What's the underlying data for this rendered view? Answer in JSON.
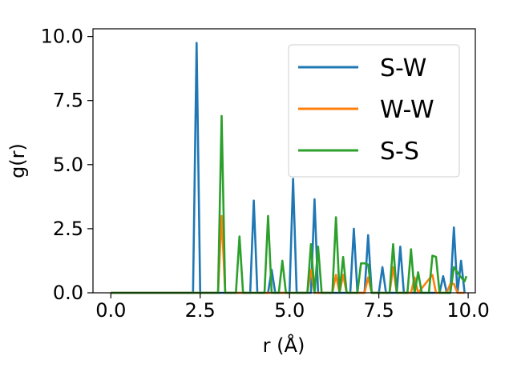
{
  "chart_data": {
    "type": "line",
    "title": "",
    "xlabel": "r (Å)",
    "ylabel": "g(r)",
    "xlim": [
      -0.5,
      10.2
    ],
    "ylim": [
      0,
      10.3
    ],
    "xticks": [
      "0.0",
      "2.5",
      "5.0",
      "7.5",
      "10.0"
    ],
    "yticks": [
      "0.0",
      "2.5",
      "5.0",
      "7.5",
      "10.0"
    ],
    "grid": false,
    "legend_position": "top-right",
    "series": [
      {
        "name": "S-W",
        "color": "#1f77b4",
        "points": [
          [
            0.0,
            0
          ],
          [
            2.3,
            0
          ],
          [
            2.4,
            9.75
          ],
          [
            2.5,
            0
          ],
          [
            3.9,
            0
          ],
          [
            4.0,
            3.6
          ],
          [
            4.1,
            0
          ],
          [
            4.4,
            0
          ],
          [
            4.5,
            0.9
          ],
          [
            4.6,
            0
          ],
          [
            5.0,
            0
          ],
          [
            5.1,
            4.45
          ],
          [
            5.2,
            0
          ],
          [
            5.6,
            0
          ],
          [
            5.7,
            3.65
          ],
          [
            5.8,
            0
          ],
          [
            6.7,
            0
          ],
          [
            6.8,
            2.5
          ],
          [
            6.9,
            0
          ],
          [
            7.1,
            0
          ],
          [
            7.2,
            2.25
          ],
          [
            7.3,
            0
          ],
          [
            7.5,
            0
          ],
          [
            7.6,
            1.0
          ],
          [
            7.7,
            0
          ],
          [
            8.0,
            0
          ],
          [
            8.1,
            1.8
          ],
          [
            8.2,
            0
          ],
          [
            9.2,
            0
          ],
          [
            9.3,
            0.65
          ],
          [
            9.4,
            0
          ],
          [
            9.5,
            0
          ],
          [
            9.6,
            2.55
          ],
          [
            9.7,
            0
          ],
          [
            9.8,
            1.25
          ],
          [
            9.9,
            0
          ]
        ]
      },
      {
        "name": "W-W",
        "color": "#ff7f0e",
        "points": [
          [
            0.0,
            0
          ],
          [
            3.0,
            0
          ],
          [
            3.1,
            3.0
          ],
          [
            3.2,
            0
          ],
          [
            5.5,
            0
          ],
          [
            5.6,
            0.9
          ],
          [
            5.7,
            0
          ],
          [
            6.2,
            0
          ],
          [
            6.3,
            0.7
          ],
          [
            6.4,
            0
          ],
          [
            6.5,
            0.7
          ],
          [
            6.6,
            0
          ],
          [
            7.1,
            0
          ],
          [
            7.2,
            0.6
          ],
          [
            7.3,
            0
          ],
          [
            7.8,
            0
          ],
          [
            7.9,
            1.0
          ],
          [
            8.0,
            0
          ],
          [
            8.4,
            0
          ],
          [
            8.5,
            0.6
          ],
          [
            8.6,
            0
          ],
          [
            9.0,
            0.7
          ],
          [
            9.1,
            0
          ],
          [
            9.4,
            0
          ],
          [
            9.5,
            0.35
          ],
          [
            9.6,
            0.35
          ],
          [
            9.7,
            0
          ],
          [
            9.9,
            0
          ]
        ]
      },
      {
        "name": "S-S",
        "color": "#2ca02c",
        "points": [
          [
            0.0,
            0
          ],
          [
            3.0,
            0
          ],
          [
            3.1,
            6.9
          ],
          [
            3.2,
            0
          ],
          [
            3.5,
            0
          ],
          [
            3.6,
            2.2
          ],
          [
            3.7,
            0
          ],
          [
            4.3,
            0
          ],
          [
            4.4,
            3.0
          ],
          [
            4.5,
            0
          ],
          [
            4.7,
            0
          ],
          [
            4.8,
            1.25
          ],
          [
            4.9,
            0
          ],
          [
            5.5,
            0
          ],
          [
            5.6,
            1.9
          ],
          [
            5.7,
            0
          ],
          [
            5.8,
            1.8
          ],
          [
            5.9,
            0
          ],
          [
            6.2,
            0
          ],
          [
            6.3,
            2.95
          ],
          [
            6.4,
            0
          ],
          [
            6.5,
            1.4
          ],
          [
            6.6,
            0
          ],
          [
            6.9,
            0
          ],
          [
            7.0,
            1.15
          ],
          [
            7.1,
            1.15
          ],
          [
            7.2,
            1.1
          ],
          [
            7.3,
            0
          ],
          [
            7.8,
            0
          ],
          [
            7.9,
            1.9
          ],
          [
            8.0,
            0
          ],
          [
            8.3,
            0
          ],
          [
            8.4,
            1.7
          ],
          [
            8.5,
            0
          ],
          [
            8.6,
            0.8
          ],
          [
            8.7,
            0
          ],
          [
            8.9,
            0
          ],
          [
            9.0,
            1.45
          ],
          [
            9.1,
            1.4
          ],
          [
            9.2,
            0
          ],
          [
            9.5,
            0
          ],
          [
            9.6,
            1.0
          ],
          [
            9.7,
            0.8
          ],
          [
            9.8,
            0.6
          ],
          [
            9.9,
            0.45
          ],
          [
            9.95,
            0.65
          ]
        ]
      }
    ]
  }
}
